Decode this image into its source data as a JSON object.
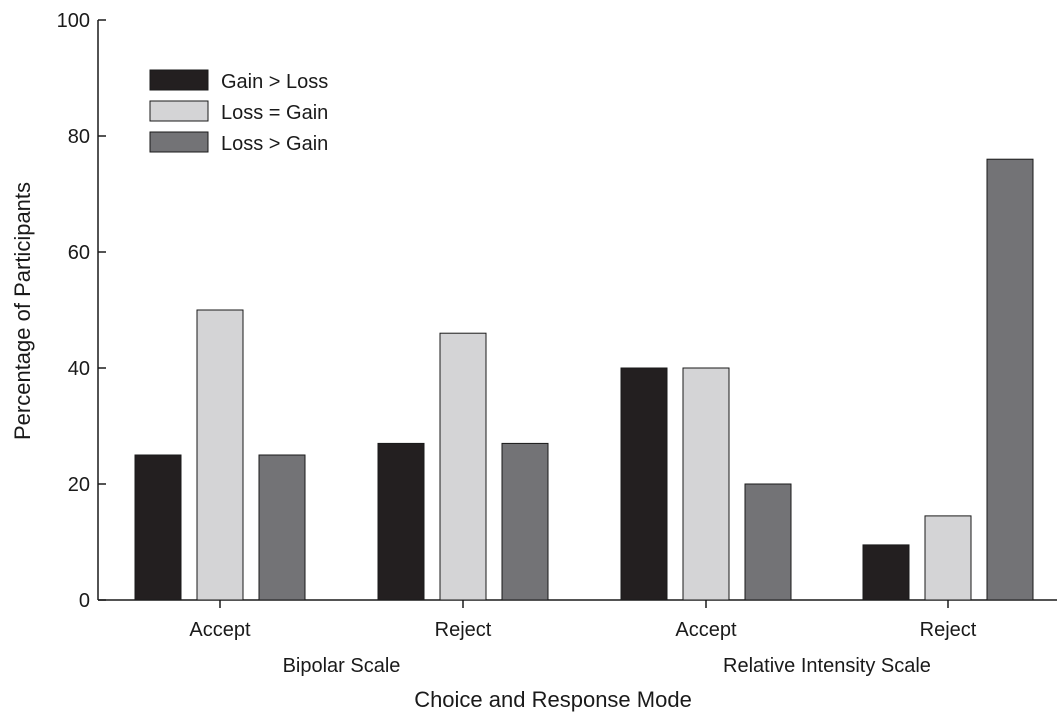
{
  "chart_data": {
    "type": "bar",
    "title": "",
    "xlabel": "Choice and Response Mode",
    "ylabel": "Percentage of Participants",
    "ylim": [
      0,
      100
    ],
    "yticks": [
      0,
      20,
      40,
      60,
      80,
      100
    ],
    "grid": false,
    "legend_position": "top-left",
    "categories": [
      "Accept",
      "Reject",
      "Accept",
      "Reject"
    ],
    "groups": [
      {
        "label": "Bipolar Scale",
        "categories": [
          0,
          1
        ]
      },
      {
        "label": "Relative Intensity Scale",
        "categories": [
          2,
          3
        ]
      }
    ],
    "series": [
      {
        "name": "Gain > Loss",
        "color": "#231f20",
        "values": [
          25,
          27,
          40,
          9.5
        ]
      },
      {
        "name": "Loss = Gain",
        "color": "#d4d4d6",
        "values": [
          50,
          46,
          40,
          14.5
        ]
      },
      {
        "name": "Loss > Gain",
        "color": "#737376",
        "values": [
          25,
          27,
          20,
          76
        ]
      }
    ]
  }
}
